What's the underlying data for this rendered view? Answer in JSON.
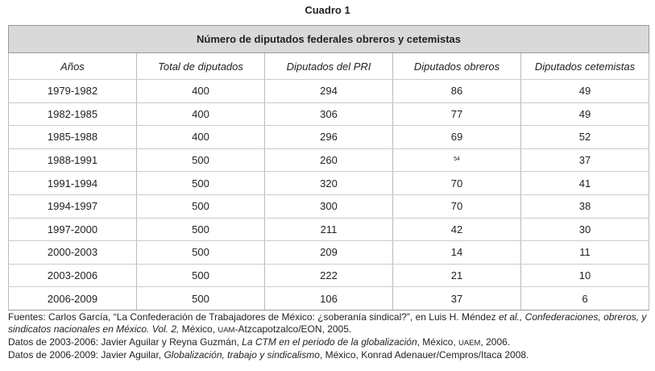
{
  "caption": "Cuadro 1",
  "table": {
    "title": "Número de diputados federales obreros y cetemistas",
    "columns": [
      "Años",
      "Total de diputados",
      "Diputados del PRI",
      "Diputados obreros",
      "Diputados cetemistas"
    ],
    "rows": [
      [
        "1979-1982",
        400,
        294,
        86,
        49
      ],
      [
        "1982-1985",
        400,
        306,
        77,
        49
      ],
      [
        "1985-1988",
        400,
        296,
        69,
        52
      ],
      [
        "1988-1991",
        500,
        260,
        54,
        37
      ],
      [
        "1991-1994",
        500,
        320,
        70,
        41
      ],
      [
        "1994-1997",
        500,
        300,
        70,
        38
      ],
      [
        "1997-2000",
        500,
        211,
        42,
        30
      ],
      [
        "2000-2003",
        500,
        209,
        14,
        11
      ],
      [
        "2003-2006",
        500,
        222,
        21,
        10
      ],
      [
        "2006-2009",
        500,
        106,
        37,
        6
      ]
    ]
  },
  "notes": [
    [
      "Fuentes: Carlos García, “La Confederación de Trabajadores de México: ¿soberanía sindical?”, en Luis H. Méndez ",
      "et al., Confederaciones, obreros, y sindicatos nacionales en México. Vol. 2,",
      " México, ",
      "UAM",
      "-Atzcapotzalco/EON, 2005."
    ],
    [
      "Datos de 2003-2006: Javier Aguilar y Reyna Guzmán, ",
      "La CTM en el periodo de la globalización",
      ", México, ",
      "UAEM",
      ", 2006."
    ],
    [
      "Datos de 2006-2009: Javier Aguilar, ",
      "Globalización, trabajo y sindicalismo",
      ", México, Konrad Adenauer/Cempros/Itaca 2008."
    ]
  ]
}
